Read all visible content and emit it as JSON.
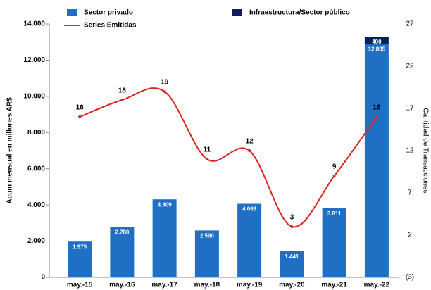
{
  "chart_data": {
    "type": "bar",
    "categories": [
      "may.-15",
      "may.-16",
      "may.-17",
      "may.-18",
      "may.-19",
      "may.-20",
      "may.-21",
      "may.-22"
    ],
    "series": [
      {
        "name": "Sector privado",
        "color": "#1f6fc4",
        "values": [
          1975,
          2780,
          4309,
          2590,
          4063,
          1441,
          3811,
          12895
        ],
        "value_labels": [
          "1.975",
          "2.780",
          "4.309",
          "2.590",
          "4.063",
          "1.441",
          "3.811",
          "12.895"
        ]
      },
      {
        "name": "Infraestructura/Sector público",
        "color": "#0b1f5e",
        "values": [
          null,
          null,
          null,
          null,
          null,
          null,
          null,
          400
        ]
      },
      {
        "name": "Series Emitidas",
        "color": "#e02424",
        "type": "line",
        "axis": "y2",
        "values": [
          16,
          18,
          19,
          11,
          12,
          3,
          9,
          16
        ]
      }
    ],
    "y_label": "Acum mensual en millones AR$",
    "y2_label": "Cantidad de Transacciones",
    "ylim": [
      0,
      14000
    ],
    "yticks": [
      0,
      {
        "value": 2000,
        "label": "2.000"
      },
      {
        "value": 4000,
        "label": "4.000"
      },
      {
        "value": 6000,
        "label": "6.000"
      },
      {
        "value": 8000,
        "label": "8.000"
      },
      {
        "value": 10000,
        "label": "10.000"
      },
      {
        "value": 12000,
        "label": "12.000"
      },
      {
        "value": 14000,
        "label": "14.000"
      }
    ],
    "y2lim": [
      -3,
      27
    ],
    "y2ticks": [
      {
        "value": -3,
        "label": "(3)"
      },
      2,
      7,
      12,
      17,
      22,
      27
    ]
  }
}
